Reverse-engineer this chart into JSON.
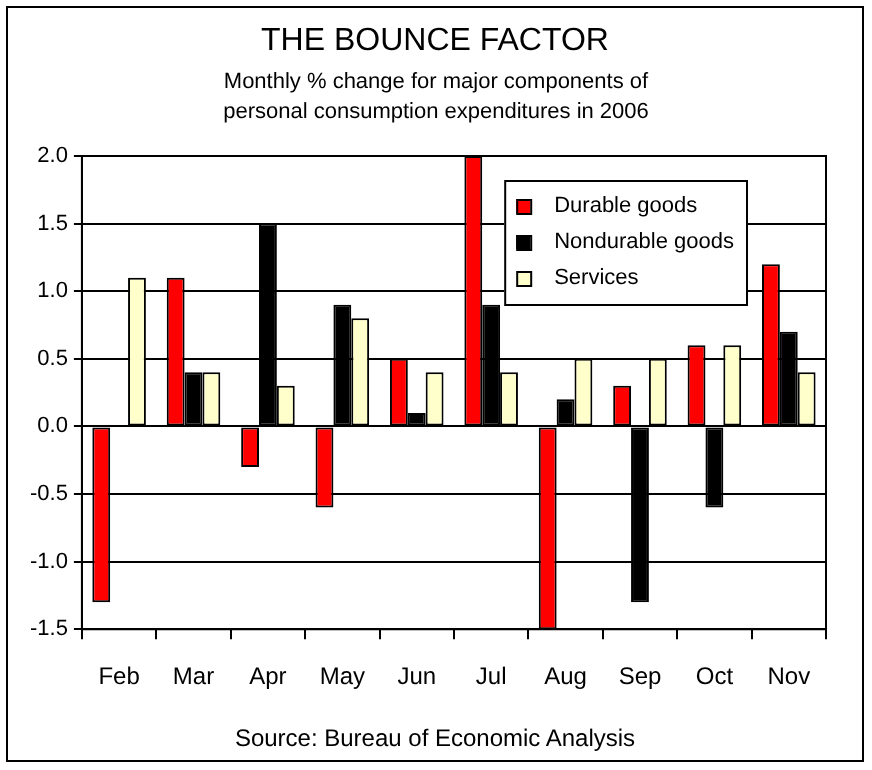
{
  "chart_data": {
    "type": "bar",
    "title": "THE BOUNCE FACTOR",
    "subtitle": "Monthly % change for major components of personal consumption expenditures in 2006",
    "categories": [
      "Feb",
      "Mar",
      "Apr",
      "May",
      "Jun",
      "Jul",
      "Aug",
      "Sep",
      "Oct",
      "Nov"
    ],
    "series": [
      {
        "name": "Durable goods",
        "color": "#ff0000",
        "values": [
          -1.3,
          1.1,
          -0.3,
          -0.6,
          0.5,
          2.0,
          -1.5,
          0.3,
          0.6,
          1.2
        ]
      },
      {
        "name": "Nondurable goods",
        "color": "#000000",
        "values": [
          0,
          0.4,
          1.5,
          0.9,
          0.1,
          0.9,
          0.2,
          -1.3,
          -0.6,
          0.7
        ]
      },
      {
        "name": "Services",
        "color": "#ffffcc",
        "values": [
          1.1,
          0.4,
          0.3,
          0.8,
          0.4,
          0.4,
          0.5,
          0.5,
          0.6,
          0.4
        ]
      }
    ],
    "ylim": [
      -1.5,
      2.0
    ],
    "yticks": [
      {
        "value": -1.5,
        "label": "-1.5"
      },
      {
        "value": -1.0,
        "label": "-1.0"
      },
      {
        "value": -0.5,
        "label": "-0.5"
      },
      {
        "value": 0,
        "label": "0.0"
      },
      {
        "value": 0.5,
        "label": "0.5"
      },
      {
        "value": 1.0,
        "label": "1.0"
      },
      {
        "value": 1.5,
        "label": "1.5"
      },
      {
        "value": 2.0,
        "label": "2.0"
      }
    ],
    "grid": "y",
    "legend": "top right",
    "annotations": [
      "Source: Bureau of Economic Analysis"
    ]
  }
}
